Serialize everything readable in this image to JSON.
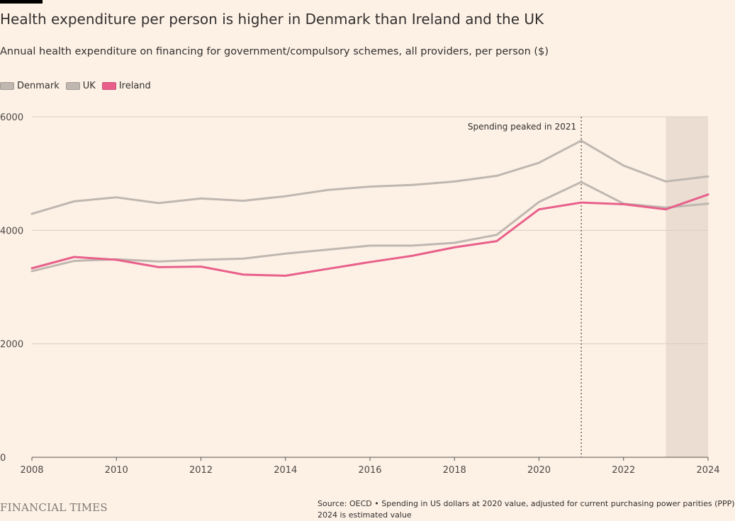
{
  "title": "Health expenditure per person is higher in Denmark than Ireland and the UK",
  "subtitle": "Annual health expenditure on financing for government/compulsory schemes, all providers, per person ($)",
  "legend": [
    {
      "name": "Denmark",
      "color": "#bfb7b0"
    },
    {
      "name": "UK",
      "color": "#bfb7b0"
    },
    {
      "name": "Ireland",
      "color": "#e8608a"
    }
  ],
  "footer": {
    "logo": "FINANCIAL TIMES",
    "source": "Source: OECD • Spending in US dollars at 2020 value, adjusted for current purchasing power parities (PPP)",
    "note": "2024 is estimated value"
  },
  "colors": {
    "background": "#fdf1e6",
    "grid": "#d9cec4",
    "shade": "#ebddd2",
    "ireland": "#e8608a",
    "other": "#bfb7b0"
  },
  "chart_data": {
    "type": "line",
    "title": "Health expenditure per person is higher in Denmark than Ireland and the UK",
    "subtitle": "Annual health expenditure on financing for government/compulsory schemes, all providers, per person ($)",
    "x": [
      2008,
      2009,
      2010,
      2011,
      2012,
      2013,
      2014,
      2015,
      2016,
      2017,
      2018,
      2019,
      2020,
      2021,
      2022,
      2023,
      2024
    ],
    "xlim": [
      2008,
      2024
    ],
    "ylim": [
      0,
      6000
    ],
    "xticks": [
      2008,
      2010,
      2012,
      2014,
      2016,
      2018,
      2020,
      2022,
      2024
    ],
    "yticks": [
      0,
      2000,
      4000,
      6000
    ],
    "grid": true,
    "legend_position": "top-left",
    "series": [
      {
        "name": "Denmark",
        "color": "#bfb7b0",
        "values": [
          4290,
          4510,
          4580,
          4480,
          4560,
          4520,
          4600,
          4710,
          4770,
          4800,
          4860,
          4960,
          5190,
          5580,
          5140,
          4860,
          4950
        ]
      },
      {
        "name": "UK",
        "color": "#bfb7b0",
        "values": [
          3280,
          3460,
          3490,
          3450,
          3480,
          3500,
          3590,
          3660,
          3730,
          3730,
          3780,
          3920,
          4500,
          4850,
          4470,
          4400,
          4470
        ]
      },
      {
        "name": "Ireland",
        "color": "#e8608a",
        "values": [
          3330,
          3530,
          3480,
          3350,
          3360,
          3220,
          3200,
          3320,
          3440,
          3550,
          3700,
          3810,
          4370,
          4490,
          4460,
          4370,
          4630
        ]
      }
    ],
    "annotations": [
      {
        "x": 2021,
        "text": "Spending peaked in 2021"
      }
    ],
    "shaded_range": {
      "from": 2023,
      "to": 2024,
      "meaning": "2024 is estimated value"
    }
  }
}
